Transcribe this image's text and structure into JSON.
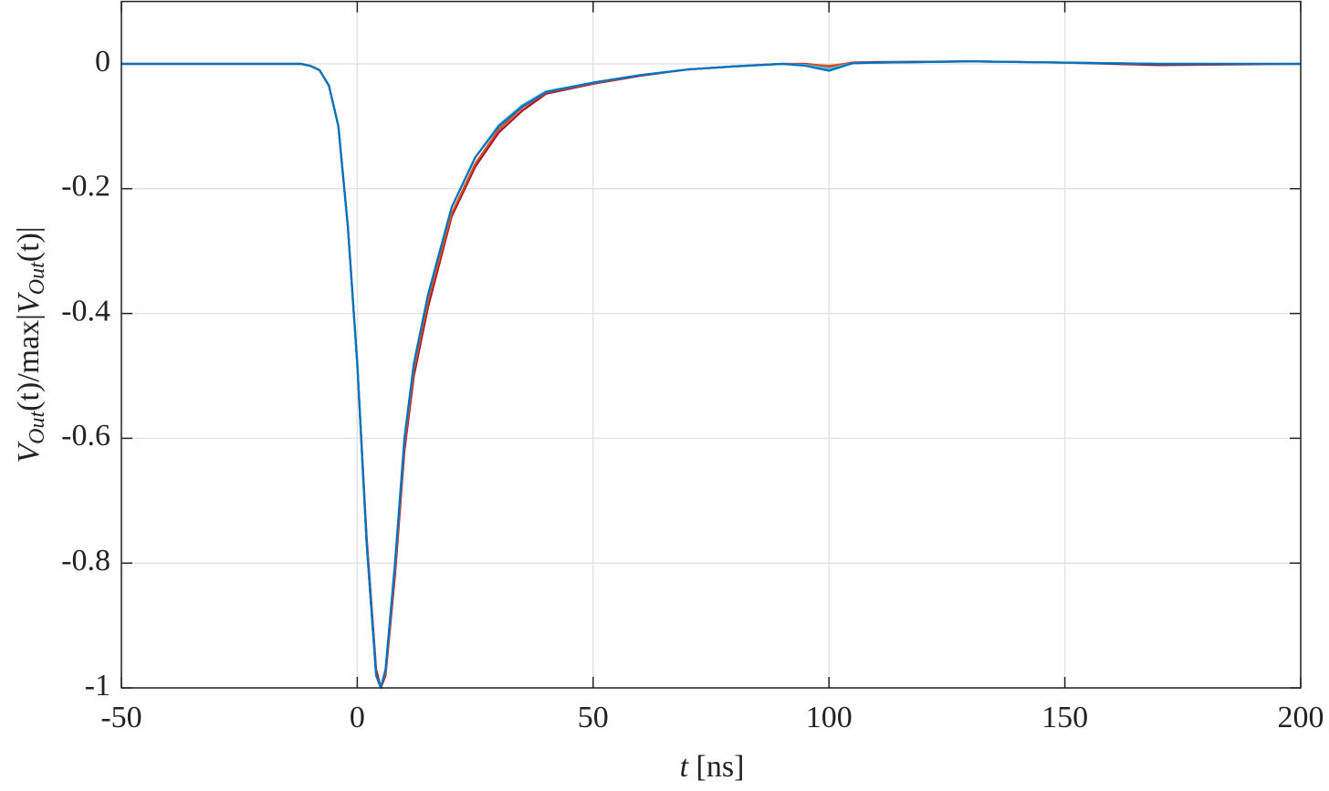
{
  "chart_data": {
    "type": "line",
    "xlabel": [
      "t",
      " [ns]"
    ],
    "ylabel": [
      "V",
      "Out",
      "(t)/max|",
      "V",
      "Out",
      "(t)|"
    ],
    "x": [
      -50,
      -20,
      -12,
      -10,
      -8,
      -6,
      -4,
      -2,
      0,
      2,
      4,
      5,
      6,
      8,
      10,
      12,
      15,
      20,
      25,
      30,
      35,
      40,
      50,
      60,
      70,
      80,
      90,
      95,
      100,
      105,
      110,
      130,
      150,
      170,
      200
    ],
    "series": [
      {
        "color": "#a2142f",
        "values": [
          0,
          0,
          0,
          -0.003,
          -0.01,
          -0.035,
          -0.1,
          -0.26,
          -0.48,
          -0.76,
          -0.97,
          -1,
          -0.98,
          -0.82,
          -0.62,
          -0.5,
          -0.39,
          -0.245,
          -0.165,
          -0.11,
          -0.075,
          -0.048,
          -0.032,
          -0.019,
          -0.009,
          -0.004,
          0,
          0,
          -0.004,
          0.002,
          0.003,
          0.004,
          0.002,
          -0.002,
          0
        ]
      },
      {
        "color": "#d95319",
        "values": [
          0,
          0,
          0,
          -0.003,
          -0.01,
          -0.035,
          -0.1,
          -0.26,
          -0.48,
          -0.77,
          -0.98,
          -1,
          -0.975,
          -0.81,
          -0.61,
          -0.49,
          -0.38,
          -0.24,
          -0.16,
          -0.105,
          -0.07,
          -0.046,
          -0.031,
          -0.018,
          -0.009,
          -0.004,
          0,
          -0.001,
          -0.003,
          0.001,
          0.002,
          0.004,
          0.002,
          0,
          0
        ]
      },
      {
        "color": "#4dbeee",
        "values": [
          0,
          0,
          0,
          -0.003,
          -0.01,
          -0.035,
          -0.1,
          -0.26,
          -0.48,
          -0.77,
          -0.98,
          -1,
          -0.97,
          -0.8,
          -0.6,
          -0.48,
          -0.37,
          -0.23,
          -0.15,
          -0.098,
          -0.066,
          -0.044,
          -0.03,
          -0.018,
          -0.009,
          -0.004,
          0,
          -0.002,
          -0.008,
          0.001,
          0.002,
          0.004,
          0.002,
          0,
          0
        ]
      },
      {
        "color": "#0072bd",
        "values": [
          0,
          0,
          0,
          -0.003,
          -0.01,
          -0.035,
          -0.1,
          -0.26,
          -0.48,
          -0.77,
          -0.98,
          -1,
          -0.97,
          -0.8,
          -0.6,
          -0.48,
          -0.37,
          -0.23,
          -0.15,
          -0.1,
          -0.068,
          -0.045,
          -0.03,
          -0.018,
          -0.009,
          -0.004,
          0,
          -0.003,
          -0.011,
          0.001,
          0.002,
          0.004,
          0.002,
          0,
          0
        ]
      }
    ],
    "xlim": [
      -50,
      200
    ],
    "xticks": [
      -50,
      0,
      50,
      100,
      150,
      200
    ],
    "ylim": [
      -1,
      0.1
    ],
    "yticks": [
      -1,
      -0.8,
      -0.6,
      -0.4,
      -0.2,
      0
    ],
    "grid": true
  }
}
